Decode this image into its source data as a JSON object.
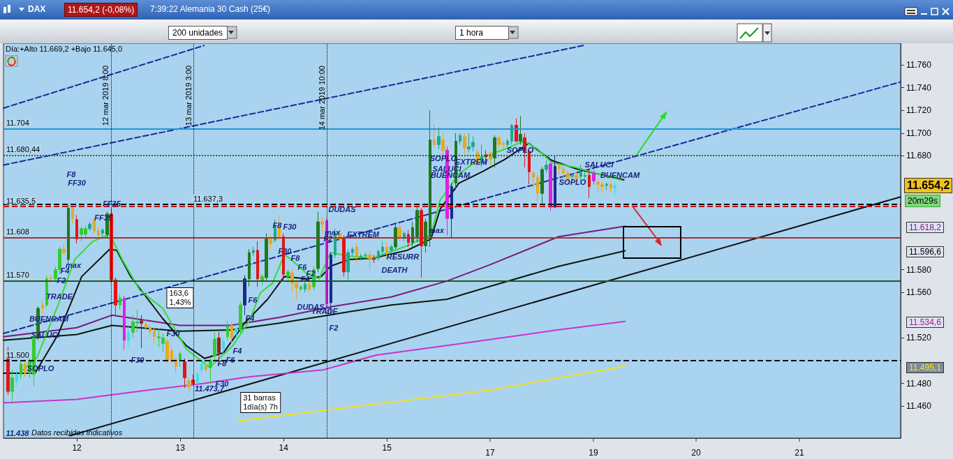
{
  "chart_data": {
    "type": "candlestick",
    "title": "DAX",
    "subtitle": "7:39:22 Alemania 30 Cash (25€)",
    "x": [
      11.3333,
      11.375,
      11.4167,
      11.4583,
      11.5,
      11.5417,
      11.5833,
      11.625,
      11.6667,
      11.7083,
      11.75,
      11.7917,
      11.8333,
      11.875,
      11.9167,
      11.9583,
      12,
      12.0417,
      12.0833,
      12.125,
      12.1667,
      12.2083,
      12.25,
      12.2917,
      12.3333,
      12.375,
      12.4167,
      12.4583,
      12.5,
      12.5417,
      12.5833,
      12.625,
      12.6667,
      12.7083,
      12.75,
      12.7917,
      12.8333,
      12.875,
      12.9167,
      12.9583,
      13,
      13.0417,
      13.0833,
      13.125,
      13.1667,
      13.2083,
      13.25,
      13.2917,
      13.3333,
      13.375,
      13.4167,
      13.4583,
      13.5,
      13.5417,
      13.5833,
      13.625,
      13.6667,
      13.7083,
      13.75,
      13.7917,
      13.8333,
      13.875,
      13.9167,
      13.9583,
      14,
      14.0417,
      14.0833,
      14.125,
      14.1667,
      14.2083,
      14.25,
      14.2917,
      14.3333,
      14.375,
      14.4167,
      14.4583,
      14.5,
      14.5417,
      14.5833,
      14.625,
      14.6667,
      14.7083,
      14.75,
      14.7917,
      14.8333,
      14.875,
      14.9167,
      14.9583,
      15,
      15.0417,
      15.0833,
      15.125,
      15.1667,
      15.2083,
      15.25,
      15.2917,
      15.3333,
      15.375,
      15.4167,
      15.4583,
      15.5,
      15.5417,
      15.5833,
      15.625,
      15.6667,
      15.7083,
      15.75,
      15.7917,
      15.8333,
      15.875,
      15.9167,
      15.9583,
      16,
      16.0417,
      16.0833,
      16.125,
      16.1667,
      16.2083,
      16.25,
      16.2917,
      16.3333,
      16.375,
      16.4167,
      16.4583,
      16.5,
      16.5417,
      16.5833,
      16.625,
      16.6667,
      16.7083,
      16.75,
      16.7917,
      16.8333,
      16.875,
      16.9167,
      16.9583,
      17,
      17.0417,
      17.0833,
      17.125,
      17.1667,
      17.2083
    ],
    "ohlc": [
      [
        11508,
        11512,
        11470,
        11473
      ],
      [
        11473,
        11492,
        11462,
        11485
      ],
      [
        11482,
        11492,
        11478,
        11488
      ],
      [
        11488,
        11500,
        11484,
        11497
      ],
      [
        11497,
        11502,
        11486,
        11489
      ],
      [
        11489,
        11503,
        11485,
        11500
      ],
      [
        11488,
        11525,
        11478,
        11521
      ],
      [
        11521,
        11548,
        11518,
        11546
      ],
      [
        11549,
        11552,
        11541,
        11546
      ],
      [
        11549,
        11575,
        11547,
        11572
      ],
      [
        11573,
        11575,
        11569,
        11572
      ],
      [
        11572,
        11583,
        11570,
        11580
      ],
      [
        11580,
        11600,
        11576,
        11598
      ],
      [
        11598,
        11602,
        11593,
        11595
      ],
      [
        11589,
        11637,
        11585,
        11634
      ],
      [
        11634,
        11636,
        11620,
        11625
      ],
      [
        11624,
        11628,
        11603,
        11607
      ],
      [
        11611,
        11618,
        11605,
        11616
      ],
      [
        11611,
        11619,
        11608,
        11616
      ],
      [
        11616,
        11622,
        11614,
        11620
      ],
      [
        11624,
        11626,
        11612,
        11614
      ],
      [
        11614,
        11618,
        11609,
        11610
      ],
      [
        11612,
        11616,
        11609,
        11615
      ],
      [
        11611,
        11631,
        11608,
        11629
      ],
      [
        11629,
        11634,
        11568,
        11571
      ],
      [
        11571,
        11573,
        11540,
        11549
      ],
      [
        11549,
        11558,
        11545,
        11555
      ],
      [
        11555,
        11557,
        11510,
        11518
      ],
      [
        11518,
        11530,
        11512,
        11525
      ],
      [
        11525,
        11540,
        11520,
        11534
      ],
      [
        11533,
        11545,
        11525,
        11534
      ],
      [
        11535,
        11540,
        11511,
        11533
      ],
      [
        11532,
        11536,
        11527,
        11529
      ],
      [
        11529,
        11532,
        11520,
        11526
      ],
      [
        11526,
        11529,
        11515,
        11521
      ],
      [
        11520,
        11528,
        11512,
        11521
      ],
      [
        11515,
        11524,
        11508,
        11520
      ],
      [
        11517,
        11520,
        11498,
        11500
      ],
      [
        11509,
        11512,
        11498,
        11500
      ],
      [
        11501,
        11503,
        11489,
        11495
      ],
      [
        11500,
        11508,
        11495,
        11506
      ],
      [
        11499,
        11502,
        11476,
        11485
      ],
      [
        11482,
        11485,
        11473,
        11477
      ],
      [
        11483,
        11488,
        11478,
        11480
      ],
      [
        11481,
        11490,
        11478,
        11488
      ],
      [
        11492,
        11500,
        11488,
        11497
      ],
      [
        11495,
        11500,
        11490,
        11492
      ],
      [
        11494,
        11503,
        11480,
        11500
      ],
      [
        11504,
        11525,
        11500,
        11519
      ],
      [
        11520,
        11525,
        11500,
        11507
      ],
      [
        11510,
        11520,
        11505,
        11517
      ],
      [
        11521,
        11535,
        11518,
        11530
      ],
      [
        11531,
        11534,
        11515,
        11520
      ],
      [
        11525,
        11532,
        11518,
        11528
      ],
      [
        11527,
        11552,
        11524,
        11549
      ],
      [
        11549,
        11575,
        11540,
        11572
      ],
      [
        11572,
        11598,
        11565,
        11595
      ],
      [
        11595,
        11600,
        11592,
        11597
      ],
      [
        11597,
        11605,
        11565,
        11572
      ],
      [
        11570,
        11576,
        11566,
        11574
      ],
      [
        11573,
        11612,
        11570,
        11607
      ],
      [
        11607,
        11610,
        11598,
        11603
      ],
      [
        11606,
        11624,
        11604,
        11619
      ],
      [
        11618,
        11628,
        11606,
        11609
      ],
      [
        11609,
        11612,
        11570,
        11576
      ],
      [
        11574,
        11580,
        11568,
        11578
      ],
      [
        11577,
        11580,
        11560,
        11568
      ],
      [
        11568,
        11570,
        11554,
        11564
      ],
      [
        11563,
        11566,
        11561,
        11565
      ],
      [
        11563,
        11570,
        11560,
        11567
      ],
      [
        11567,
        11570,
        11560,
        11563
      ],
      [
        11565,
        11583,
        11562,
        11580
      ],
      [
        11581,
        11631,
        11578,
        11622
      ],
      [
        11622,
        11626,
        11612,
        11620
      ],
      [
        11623,
        11625,
        11546,
        11550
      ],
      [
        11551,
        11595,
        11540,
        11593
      ],
      [
        11593,
        11616,
        11590,
        11612
      ],
      [
        11612,
        11616,
        11605,
        11607
      ],
      [
        11607,
        11610,
        11574,
        11578
      ],
      [
        11578,
        11598,
        11570,
        11595
      ],
      [
        11595,
        11600,
        11592,
        11598
      ],
      [
        11600,
        11603,
        11586,
        11592
      ],
      [
        11591,
        11594,
        11588,
        11592
      ],
      [
        11592,
        11595,
        11590,
        11593
      ],
      [
        11593,
        11596,
        11580,
        11590
      ],
      [
        11590,
        11593,
        11586,
        11589
      ],
      [
        11590,
        11598,
        11588,
        11596
      ],
      [
        11596,
        11605,
        11592,
        11600
      ],
      [
        11600,
        11604,
        11590,
        11595
      ],
      [
        11597,
        11602,
        11594,
        11600
      ],
      [
        11600,
        11620,
        11598,
        11617
      ],
      [
        11617,
        11620,
        11605,
        11608
      ],
      [
        11608,
        11614,
        11605,
        11612
      ],
      [
        11611,
        11615,
        11600,
        11604
      ],
      [
        11604,
        11622,
        11600,
        11617
      ],
      [
        11609,
        11636,
        11604,
        11632
      ],
      [
        11632,
        11634,
        11573,
        11601
      ],
      [
        11601,
        11625,
        11595,
        11622
      ],
      [
        11609,
        11720,
        11600,
        11694
      ],
      [
        11694,
        11708,
        11688,
        11690
      ],
      [
        11690,
        11705,
        11686,
        11697
      ],
      [
        11694,
        11701,
        11680,
        11685
      ],
      [
        11685,
        11688,
        11610,
        11625
      ],
      [
        11625,
        11656,
        11608,
        11653
      ],
      [
        11656,
        11700,
        11650,
        11693
      ],
      [
        11693,
        11700,
        11690,
        11698
      ],
      [
        11697,
        11700,
        11682,
        11687
      ],
      [
        11686,
        11700,
        11683,
        11688
      ],
      [
        11688,
        11697,
        11684,
        11692
      ],
      [
        11683,
        11686,
        11668,
        11674
      ],
      [
        11674,
        11690,
        11670,
        11679
      ],
      [
        11681,
        11685,
        11672,
        11679
      ],
      [
        11681,
        11684,
        11672,
        11677
      ],
      [
        11678,
        11698,
        11670,
        11696
      ],
      [
        11696,
        11698,
        11686,
        11690
      ],
      [
        11691,
        11693,
        11686,
        11690
      ],
      [
        11690,
        11695,
        11688,
        11693
      ],
      [
        11693,
        11708,
        11690,
        11707
      ],
      [
        11707,
        11713,
        11692,
        11693
      ],
      [
        11693,
        11715,
        11690,
        11699
      ],
      [
        11696,
        11700,
        11670,
        11684
      ],
      [
        11684,
        11686,
        11655,
        11666
      ],
      [
        11665,
        11667,
        11652,
        11661
      ],
      [
        11661,
        11663,
        11640,
        11647
      ],
      [
        11647,
        11670,
        11637,
        11668
      ],
      [
        11668,
        11676,
        11665,
        11672
      ],
      [
        11673,
        11675,
        11632,
        11635
      ],
      [
        11635,
        11680,
        11634,
        11671
      ],
      [
        11671,
        11673,
        11664,
        11669
      ],
      [
        11668,
        11671,
        11660,
        11665
      ],
      [
        11665,
        11667,
        11656,
        11660
      ],
      [
        11662,
        11665,
        11658,
        11663
      ],
      [
        11663,
        11666,
        11654,
        11660
      ],
      [
        11662,
        11672,
        11658,
        11665
      ],
      [
        11662,
        11666,
        11660,
        11663
      ],
      [
        11663,
        11668,
        11643,
        11653
      ],
      [
        11665,
        11668,
        11655,
        11658
      ],
      [
        11657,
        11660,
        11648,
        11655
      ],
      [
        11655,
        11657,
        11648,
        11653
      ],
      [
        11654,
        11657,
        11650,
        11655
      ],
      [
        11655,
        11658,
        11648,
        11652
      ],
      [
        11652,
        11657,
        11645,
        11654.2
      ]
    ],
    "colors": [
      "#e01515",
      "#33cc33",
      "#38e0e8",
      "#33cc33",
      "#e8a820",
      "#33cc33",
      "#33cc33",
      "#1f7a1f",
      "#e8a820",
      "#33cc33",
      "#e8a820",
      "#33cc33",
      "#33cc33",
      "#e8a820",
      "#1f7a1f",
      "#e8a820",
      "#e01515",
      "#33cc33",
      "#33cc33",
      "#22a882",
      "#e8a820",
      "#e8a820",
      "#22a882",
      "#1f7a1f",
      "#e01515",
      "#e01515",
      "#33cc33",
      "#e020e0",
      "#38e0e8",
      "#33cc33",
      "#33cc33",
      "#a01c1c",
      "#e8a820",
      "#e8a820",
      "#e8a820",
      "#33cc33",
      "#33cc33",
      "#e8a820",
      "#e8a820",
      "#e8a820",
      "#33cc33",
      "#e01515",
      "#e8a820",
      "#e01515",
      "#38e0e8",
      "#38e0e8",
      "#e8a820",
      "#33cc33",
      "#33cc33",
      "#a01c1c",
      "#38e0e8",
      "#33cc33",
      "#e8a820",
      "#38e0e8",
      "#33cc33",
      "#1a2a88",
      "#1f7a1f",
      "#22a882",
      "#e01515",
      "#33cc33",
      "#1f7a1f",
      "#e8a820",
      "#22a882",
      "#e8a820",
      "#e01515",
      "#33cc33",
      "#e8a820",
      "#e8a820",
      "#33cc33",
      "#22a882",
      "#e8a820",
      "#33cc33",
      "#1f7a1f",
      "#e8a820",
      "#e020e0",
      "#1a2a88",
      "#22a882",
      "#e8a820",
      "#e01515",
      "#22a882",
      "#22a882",
      "#e8a820",
      "#22a882",
      "#33cc33",
      "#e8a820",
      "#e01515",
      "#22a882",
      "#22a882",
      "#e8a820",
      "#22a882",
      "#1f7a1f",
      "#e8a820",
      "#22a882",
      "#e01515",
      "#1f7a1f",
      "#1f7a1f",
      "#e01515",
      "#1f7a1f",
      "#1f7a1f",
      "#e8a820",
      "#22a882",
      "#e8a820",
      "#e020e0",
      "#1a2a88",
      "#1f7a1f",
      "#22a882",
      "#e8a820",
      "#22a882",
      "#22a882",
      "#e8a820",
      "#22a882",
      "#e01515",
      "#e8a820",
      "#1f7a1f",
      "#e8a820",
      "#e8a820",
      "#22a882",
      "#22a882",
      "#e01515",
      "#1f7a1f",
      "#e01515",
      "#e01515",
      "#e8a820",
      "#e8a820",
      "#1f7a1f",
      "#22a882",
      "#e020e0",
      "#1a2a88",
      "#e8a820",
      "#e8a820",
      "#e8a820",
      "#22a882",
      "#e8a820",
      "#22a882",
      "#22a882",
      "#e01515",
      "#e020e0",
      "#e8a820",
      "#e8a820",
      "#22a882",
      "#e8a820",
      "#38e0e8"
    ],
    "series": [
      {
        "type": "line",
        "color": "#1a2a9a",
        "line_style": "dashed",
        "x": [
          11.29,
          13.23
        ],
        "values": [
          11722,
          11777
        ]
      },
      {
        "type": "line",
        "color": "#1a2a9a",
        "line_style": "dashed",
        "x": [
          11.29,
          16.899
        ],
        "values": [
          11672,
          11777
        ]
      },
      {
        "type": "line",
        "color": "#1a2a9a",
        "line_style": "dashed",
        "x": [
          11.29,
          19.97
        ],
        "values": [
          11524,
          11745
        ]
      },
      {
        "type": "line",
        "color": "#111111",
        "line_style": "solid",
        "x": [
          11.93,
          19.97
        ],
        "values": [
          11434,
          11644
        ]
      },
      {
        "type": "line",
        "color": "#cc33cc",
        "line_style": "solid",
        "x": [
          11.29,
          12,
          12.676,
          13.223,
          13.676,
          14.385,
          14.899,
          15.791,
          16.649,
          17.304
        ],
        "values": [
          11463,
          11466,
          11474,
          11480,
          11486,
          11492,
          11505,
          11516,
          11527,
          11534.6
        ]
      },
      {
        "type": "line",
        "color": "#f0e020",
        "line_style": "solid",
        "x": [
          13.554,
          14.635,
          15.986,
          17.304
        ],
        "values": [
          11447,
          11459,
          11474,
          11495.1
        ]
      },
      {
        "type": "line",
        "color": "#7a1a7a",
        "line_style": "solid",
        "x": [
          11.29,
          12,
          12.338,
          13,
          13.486,
          13.959,
          14.5,
          15.041,
          15.581,
          15.986,
          16.662,
          17.304
        ],
        "values": [
          11521,
          11529,
          11540,
          11531,
          11531,
          11538,
          11548,
          11556,
          11570,
          11584,
          11609,
          11618.2
        ]
      },
      {
        "type": "line",
        "color": "#0a1a0a",
        "line_style": "solid",
        "x": [
          11.29,
          12,
          12.338,
          13,
          13.486,
          13.959,
          14.5,
          15.041,
          15.581,
          15.986,
          16.662,
          17.304
        ],
        "values": [
          11518,
          11523,
          11531,
          11526,
          11527,
          11533,
          11541,
          11549,
          11554,
          11565,
          11583,
          11596.6
        ]
      },
      {
        "type": "line",
        "color": "#111111",
        "line_style": "solid",
        "x": [
          11.29,
          11.595,
          11.818,
          12.047,
          12.318,
          12.385,
          12.52,
          12.831,
          13.061,
          13.236,
          13.419,
          13.622,
          13.845,
          14.007,
          14.23,
          14.365,
          14.453,
          14.635,
          14.858,
          15.196,
          15.426,
          15.514,
          15.696,
          15.919,
          16.142,
          16.372,
          16.595,
          16.818,
          17.047,
          17.291
        ],
        "values": [
          11489,
          11489,
          11523,
          11574,
          11598,
          11597,
          11574,
          11537,
          11513,
          11502,
          11507,
          11533,
          11554,
          11574,
          11572,
          11574,
          11583,
          11589,
          11590,
          11597,
          11607,
          11633,
          11656,
          11666,
          11677,
          11691,
          11676,
          11669,
          11664,
          11659
        ]
      },
      {
        "type": "line",
        "color": "#33dd33",
        "line_style": "solid",
        "x": [
          11.48,
          11.615,
          11.818,
          11.98,
          12.155,
          12.318,
          12.439,
          12.608,
          12.831,
          13.061,
          13.284,
          13.507,
          13.669,
          13.777,
          13.892,
          14.007,
          14.074,
          14.23,
          14.345,
          14.453,
          14.635,
          14.858,
          15.196,
          15.426,
          15.514,
          15.696,
          15.919,
          16.142,
          16.324,
          16.459,
          16.595,
          16.818,
          17.047,
          17.27
        ],
        "values": [
          11492,
          11503,
          11549,
          11589,
          11605,
          11611,
          11589,
          11562,
          11546,
          11510,
          11494,
          11513,
          11535,
          11560,
          11568,
          11593,
          11589,
          11576,
          11572,
          11595,
          11592,
          11590,
          11601,
          11611,
          11641,
          11664,
          11679,
          11686,
          11693,
          11686,
          11674,
          11670,
          11664,
          11658.6
        ]
      }
    ],
    "xlim": [
      11.29,
      19.97
    ],
    "xticks": [
      12,
      13,
      14,
      15
    ],
    "ylim": [
      11432,
      11779
    ],
    "yticks": [
      {
        "value": 11460,
        "label": "11.460"
      },
      {
        "value": 11480,
        "label": "11.480"
      },
      {
        "value": 11520,
        "label": "11.520"
      },
      {
        "value": 11560,
        "label": "11.560"
      },
      {
        "value": 11580,
        "label": "11.580"
      },
      {
        "value": 11680,
        "label": "11.680"
      },
      {
        "value": 11700,
        "label": "11.700"
      },
      {
        "value": 11720,
        "label": "11.720"
      },
      {
        "value": 11740,
        "label": "11.740"
      },
      {
        "value": 11760,
        "label": "11.760"
      }
    ],
    "grid": false,
    "ref_lines": [
      {
        "axis": "y",
        "value": 11704,
        "label": "11.704",
        "color": "#1e96dc"
      },
      {
        "axis": "y",
        "value": 11608,
        "label": "11.608",
        "color": "#a83232"
      },
      {
        "axis": "y",
        "value": 11570,
        "label": "11.570",
        "color": "#1e5a1e"
      },
      {
        "axis": "y",
        "value": 11500,
        "label": "11.500",
        "color": "#000000",
        "line_style": "dashed"
      },
      {
        "axis": "y",
        "value": 11635.5,
        "label": "11.635,5",
        "color": "#cc1111",
        "line_style": "dashed"
      },
      {
        "axis": "y",
        "value": 11637.3,
        "label": "11.637,3",
        "color": "#000000",
        "line_style": "dashed"
      },
      {
        "axis": "y",
        "value": 11680.44,
        "label": "11.680,44",
        "color": "#1e6b1e",
        "line_style": "dotted"
      },
      {
        "axis": "x",
        "value": 12.3333,
        "label": "12 mar 2019 8:00",
        "color": "#000000",
        "line_style": "dotted"
      },
      {
        "axis": "x",
        "value": 13.125,
        "label": "13 mar 2019 3:00",
        "color": "#000000",
        "line_style": "dotted"
      },
      {
        "axis": "x",
        "value": 14.4167,
        "label": "14 mar 2019 10:00",
        "color": "#000000",
        "line_style": "dotted"
      }
    ],
    "annotations": [
      "11.654,2 (-0,08%)",
      "200 unidades",
      "1 hora",
      "Día:+Alto 11.669,2 +Bajo 11.645,0",
      "20m29s",
      "Datos recibidos indicativos",
      "11.654,2",
      "11.618,2",
      "11.596,6",
      "11.534,6",
      "11.495,1",
      "F8",
      "FF30",
      "FF35",
      "FF35",
      "max",
      "F4",
      "F2",
      "TRADE",
      "BUENCAM",
      "SALUCI",
      "SOPLO",
      "F30",
      "F30",
      "163,6\n1,43%",
      "11.473,7",
      "F30",
      "F8",
      "F6",
      "F4",
      "F4",
      "F6",
      "F8",
      "F30",
      "F30",
      "F8",
      "F6",
      "F2",
      "F4",
      "DUDAS",
      "max",
      "F2",
      "EXTREM",
      "RESURR",
      "DEATH",
      "DUDAS",
      "TRADE",
      "F2",
      "max",
      "SOPLO",
      "SALUCI",
      "BUENCAM",
      "EXTREM",
      "SOPLO",
      "SOPLO",
      "SALUCI",
      "BUENCAM",
      "31 barras\n1día(s) 7h",
      "11.438",
      "17",
      "19",
      "20",
      "21"
    ]
  }
}
